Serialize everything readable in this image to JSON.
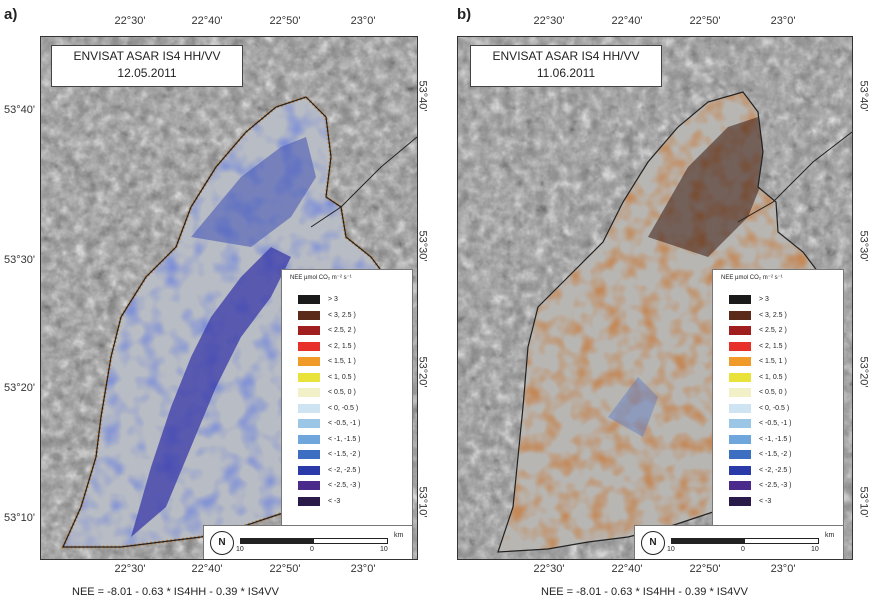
{
  "panels": [
    {
      "label": "a)",
      "title": "ENVISAT ASAR IS4 HH/VV",
      "date": "12.05.2011",
      "formula": "NEE = -8.01 - 0.63 * IS4HH - 0.39 * IS4VV"
    },
    {
      "label": "b)",
      "title": "ENVISAT ASAR IS4 HH/VV",
      "date": "11.06.2011",
      "formula": "NEE = -8.01 - 0.63 * IS4HH - 0.39 * IS4VV"
    }
  ],
  "ticks": {
    "lon": [
      "22°30'",
      "22°40'",
      "22°50'",
      "23°0'"
    ],
    "lat": [
      "53°40'",
      "53°30'",
      "53°20'",
      "53°10'"
    ]
  },
  "legend": {
    "header": "NEE  µmol CO₂ m⁻² s⁻¹",
    "classes": [
      {
        "label": "> 3",
        "color": "#1a1a1a"
      },
      {
        "label": "< 3, 2.5 )",
        "color": "#5c2a18"
      },
      {
        "label": "< 2.5, 2 )",
        "color": "#a01e1e"
      },
      {
        "label": "< 2, 1.5 )",
        "color": "#e8302a"
      },
      {
        "label": "< 1.5, 1 )",
        "color": "#f09a2a"
      },
      {
        "label": "< 1, 0.5 )",
        "color": "#e8e23a"
      },
      {
        "label": "< 0.5, 0 )",
        "color": "#f2f0c6"
      },
      {
        "label": "< 0, -0.5 )",
        "color": "#cfe4f2"
      },
      {
        "label": "< -0.5, -1 )",
        "color": "#9cc6e6"
      },
      {
        "label": "< -1, -1.5 )",
        "color": "#6fa6dc"
      },
      {
        "label": "< -1.5, -2 )",
        "color": "#3c6ec2"
      },
      {
        "label": "< -2, -2.5 )",
        "color": "#2a3aa8"
      },
      {
        "label": "< -2.5, -3 )",
        "color": "#4a2a8a"
      },
      {
        "label": "< -3",
        "color": "#2a1a4a"
      }
    ]
  },
  "scale": {
    "left": "10",
    "mid": "0",
    "right": "10",
    "unit": "km",
    "north": "N"
  },
  "colors": {
    "background_gray": "#8a8a8a",
    "outline": "#222222"
  }
}
